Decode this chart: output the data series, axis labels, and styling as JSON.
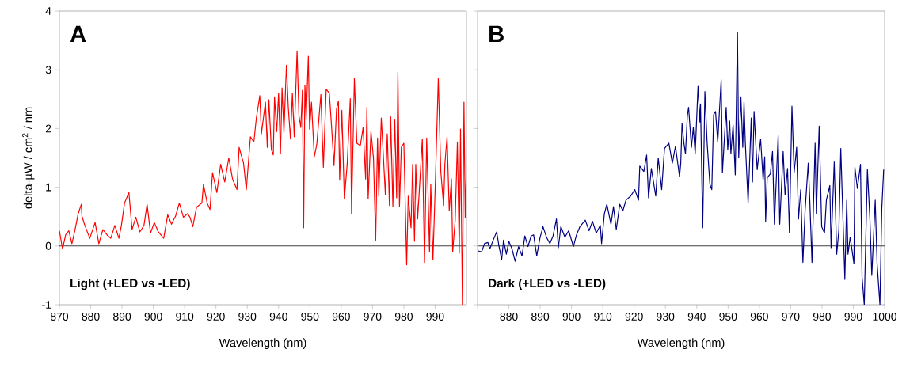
{
  "chart_data": [
    {
      "type": "line",
      "xlabel": "Wavelength (nm)",
      "ylabel": "delta-µW / cm$^{2}$ / nm",
      "annotations": [
        "A",
        "Light (+LED vs -LED)"
      ],
      "x": [
        870,
        871,
        872,
        873,
        874,
        875,
        876,
        877,
        877.2,
        878,
        879.7,
        881.4,
        882.6,
        883.9,
        885.2,
        886.4,
        887.7,
        889,
        889.8,
        890.8,
        892.2,
        893.2,
        894.4,
        895.7,
        897,
        898,
        899.1,
        900.3,
        901.6,
        903.3,
        904.6,
        905.8,
        907.1,
        908.3,
        909.6,
        910.9,
        911.7,
        912.6,
        913.8,
        915.5,
        916,
        917.2,
        918.1,
        918.9,
        920.3,
        921.5,
        922.8,
        924.1,
        925.3,
        926.7,
        927.4,
        928.8,
        929.7,
        931,
        932.1,
        932.9,
        934,
        934.5,
        935.8,
        936.4,
        936.9,
        937.7,
        938.3,
        938.7,
        939.4,
        940,
        940.6,
        941.1,
        941.7,
        942.5,
        943.1,
        943.8,
        944.4,
        945,
        945.9,
        946.5,
        947.1,
        947.6,
        948,
        948.4,
        948.8,
        949.5,
        949.9,
        950.5,
        951.4,
        952.2,
        953.5,
        954.3,
        955.2,
        956.2,
        956.8,
        957.7,
        958.5,
        959.1,
        959.5,
        960.2,
        961,
        961.9,
        962.9,
        963.3,
        964.2,
        965,
        966.1,
        967,
        967.8,
        968.2,
        968.6,
        969.5,
        970.3,
        971,
        971.6,
        972,
        972.8,
        973.4,
        974.1,
        974.7,
        975.4,
        975.8,
        976.5,
        977.1,
        977.7,
        978.1,
        978.6,
        979.2,
        980,
        980.9,
        981.4,
        982.3,
        982.8,
        983.4,
        983.8,
        984.4,
        985.1,
        985.9,
        986.6,
        987.3,
        988.2,
        988.6,
        989.3,
        990.1,
        991,
        991.8,
        992.7,
        993.1,
        993.8,
        994.5,
        995.2,
        995.6,
        996.4,
        997.1,
        997.7,
        998.1,
        998.7,
        999.2,
        999.6,
        1000
      ],
      "series": [
        {
          "color": "#ff0000",
          "values": [
            0.26,
            -0.05,
            0.19,
            0.26,
            0.04,
            0.28,
            0.55,
            0.71,
            0.51,
            0.37,
            0.13,
            0.4,
            0.04,
            0.28,
            0.19,
            0.13,
            0.35,
            0.13,
            0.35,
            0.73,
            0.91,
            0.28,
            0.49,
            0.24,
            0.35,
            0.71,
            0.22,
            0.4,
            0.24,
            0.13,
            0.53,
            0.37,
            0.51,
            0.73,
            0.49,
            0.55,
            0.49,
            0.33,
            0.66,
            0.73,
            1.05,
            0.73,
            0.62,
            1.25,
            0.91,
            1.39,
            1.09,
            1.5,
            1.14,
            0.96,
            1.68,
            1.41,
            0.96,
            1.86,
            1.77,
            2.18,
            2.56,
            1.91,
            2.45,
            1.68,
            2.49,
            1.64,
            1.55,
            2.54,
            1.95,
            2.6,
            1.57,
            2.69,
            1.93,
            3.08,
            2.36,
            1.82,
            2.6,
            1.86,
            3.32,
            2.22,
            2.02,
            2.65,
            0.31,
            2.74,
            2.16,
            3.23,
            1.99,
            2.45,
            1.52,
            1.73,
            2.58,
            1.34,
            2.67,
            2.6,
            2.13,
            1.37,
            2.33,
            2.47,
            1.12,
            2.31,
            0.8,
            1.39,
            2.51,
            0.55,
            2.85,
            1.75,
            1.71,
            2.02,
            1.14,
            2.36,
            0.8,
            1.95,
            1.5,
            0.1,
            1.84,
            0.85,
            2.18,
            1.59,
            0.87,
            1.91,
            0.69,
            2.2,
            0.67,
            2.16,
            0.82,
            2.96,
            0.67,
            1.68,
            1.75,
            -0.32,
            0.85,
            0.31,
            1.39,
            0.08,
            1.39,
            0.46,
            1.09,
            1.82,
            -0.28,
            1.84,
            -0.1,
            1.05,
            -0.23,
            1.14,
            2.85,
            1.27,
            0.69,
            1.39,
            1.86,
            0.6,
            1.14,
            -0.1,
            0.44,
            1.77,
            -0.12,
            1.99,
            -1.0,
            2.45,
            0.48,
            1.39
          ]
        }
      ],
      "xlim": [
        870,
        1000
      ],
      "ylim": [
        -1,
        4
      ],
      "xticks": [
        870,
        880,
        890,
        900,
        910,
        920,
        930,
        940,
        950,
        960,
        970,
        980,
        990
      ],
      "yticks": [
        -1,
        0,
        1,
        2,
        3,
        4
      ],
      "ref_lines": [
        {
          "axis": "y",
          "value": 0,
          "color": "#404040"
        }
      ]
    },
    {
      "type": "line",
      "xlabel": "Wavelength (nm)",
      "annotations": [
        "B",
        "Dark (+LED vs -LED)"
      ],
      "x": [
        870,
        871.3,
        872.2,
        873.3,
        873.9,
        875,
        876.1,
        876.8,
        877.7,
        878.3,
        879.2,
        880,
        881,
        882,
        883.1,
        884.2,
        885.1,
        886.1,
        887.1,
        887.9,
        888.9,
        889.9,
        890.9,
        892,
        893.1,
        894.1,
        895.2,
        895.8,
        896.6,
        897.9,
        899.1,
        900.6,
        901.6,
        902.7,
        904.4,
        905.6,
        906.7,
        907.9,
        909.2,
        909.6,
        910.5,
        911.3,
        912.6,
        913.4,
        914.3,
        915.4,
        916.4,
        917.4,
        918.9,
        920.2,
        921.4,
        921.8,
        923.1,
        924,
        924.6,
        925.5,
        926.9,
        927.7,
        928.8,
        929.7,
        931.1,
        932.2,
        933.2,
        934.5,
        934.9,
        935.3,
        935.9,
        936.4,
        937,
        937.4,
        938.3,
        938.9,
        939.5,
        940.4,
        941,
        941.2,
        941.9,
        942.6,
        943.3,
        944.2,
        944.8,
        945.4,
        946,
        946.7,
        947.8,
        948.2,
        949.4,
        949.9,
        950.5,
        950.9,
        951.6,
        952.3,
        953,
        953.4,
        954.1,
        954.7,
        955.1,
        955.5,
        956.4,
        957.4,
        957.8,
        958.3,
        959.3,
        960.4,
        961.2,
        961.7,
        962,
        962.5,
        963.5,
        964.2,
        964.8,
        966,
        966.5,
        967.6,
        968.2,
        969,
        969.6,
        970.4,
        971.1,
        971.9,
        972.5,
        973.2,
        973.9,
        974.6,
        975.6,
        976.1,
        976.8,
        977.8,
        978.2,
        979.1,
        979.9,
        980.8,
        981.4,
        982.5,
        982.9,
        983.9,
        984.7,
        985.4,
        986,
        987.3,
        987.9,
        988.3,
        989,
        990.2,
        990.5,
        991.3,
        992.3,
        992.8,
        993.5,
        994.5,
        995.3,
        995.9,
        997,
        997.6,
        998.5,
        999.1,
        999.7
      ],
      "series": [
        {
          "color": "#000080",
          "values": [
            -0.08,
            -0.1,
            0.04,
            0.06,
            -0.05,
            0.1,
            0.24,
            0.01,
            -0.23,
            0.1,
            -0.14,
            0.08,
            -0.05,
            -0.26,
            -0.01,
            -0.17,
            0.17,
            -0.01,
            0.17,
            0.19,
            -0.17,
            0.13,
            0.33,
            0.15,
            0.04,
            0.17,
            0.46,
            -0.03,
            0.33,
            0.15,
            0.26,
            -0.01,
            0.19,
            0.33,
            0.44,
            0.26,
            0.42,
            0.22,
            0.35,
            0.04,
            0.55,
            0.71,
            0.37,
            0.67,
            0.28,
            0.71,
            0.6,
            0.78,
            0.85,
            0.96,
            0.78,
            1.36,
            1.27,
            1.55,
            0.82,
            1.32,
            0.85,
            1.5,
            0.96,
            1.66,
            1.75,
            1.41,
            1.7,
            1.18,
            1.41,
            2.09,
            1.75,
            1.57,
            2.22,
            2.36,
            1.68,
            2.02,
            1.57,
            2.72,
            2.11,
            2.42,
            0.31,
            2.63,
            1.77,
            1.05,
            0.96,
            2.24,
            2.29,
            1.77,
            2.83,
            1.25,
            2.36,
            1.64,
            2.13,
            1.57,
            2.06,
            1.21,
            3.64,
            1.5,
            2.54,
            1.68,
            2.45,
            1.77,
            0.73,
            2.18,
            1.09,
            2.29,
            1.3,
            1.82,
            1.12,
            1.52,
            0.42,
            1.16,
            1.23,
            1.61,
            0.37,
            1.88,
            0.37,
            1.61,
            0.87,
            1.32,
            0.22,
            2.38,
            1.25,
            1.68,
            0.46,
            0.96,
            -0.28,
            0.6,
            1.41,
            0.78,
            -0.28,
            1.75,
            0.55,
            2.04,
            0.33,
            0.22,
            0.78,
            1.03,
            -0.03,
            1.43,
            -0.14,
            0.28,
            1.66,
            -0.57,
            0.78,
            -0.14,
            0.15,
            -0.3,
            1.34,
            0.98,
            1.39,
            -0.53,
            -1.0,
            1.3,
            0.46,
            -0.5,
            0.78,
            -0.3,
            -1.0,
            0.64,
            1.3
          ]
        }
      ],
      "xlim": [
        870,
        1000
      ],
      "ylim": [
        -1,
        4
      ],
      "xticks": [
        {
          "value": 870,
          "label": null
        },
        880,
        890,
        900,
        910,
        920,
        930,
        940,
        950,
        960,
        970,
        980,
        990,
        1000
      ],
      "yticks": [
        -1,
        0,
        1,
        2,
        3,
        4
      ],
      "tick_labels": "x",
      "ref_lines": [
        {
          "axis": "y",
          "value": 0,
          "color": "#404040"
        }
      ]
    }
  ]
}
